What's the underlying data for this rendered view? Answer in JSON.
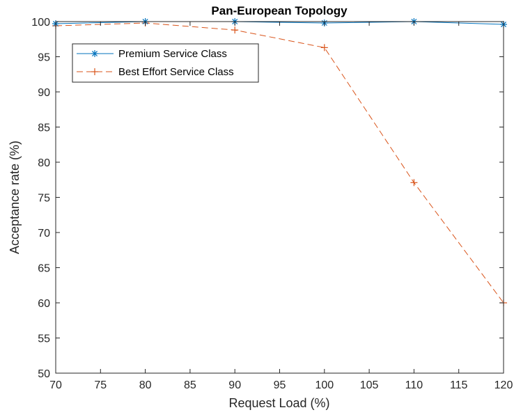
{
  "chart_data": {
    "type": "line",
    "title": "Pan-European Topology",
    "xlabel": "Request Load (%)",
    "ylabel": "Acceptance rate (%)",
    "xlim": [
      70,
      120
    ],
    "ylim": [
      50,
      100
    ],
    "xticks": [
      70,
      75,
      80,
      85,
      90,
      95,
      100,
      105,
      110,
      115,
      120
    ],
    "yticks": [
      50,
      55,
      60,
      65,
      70,
      75,
      80,
      85,
      90,
      95,
      100
    ],
    "grid": false,
    "legend_location": "top-left",
    "x": [
      70,
      80,
      90,
      100,
      110,
      120
    ],
    "series": [
      {
        "name": "Premium Service Class",
        "values": [
          99.7,
          100.0,
          100.0,
          99.8,
          100.0,
          99.6
        ],
        "color": "#0072BD",
        "line_style": "solid",
        "marker": "asterisk"
      },
      {
        "name": "Best Effort Service Class",
        "values": [
          99.4,
          99.8,
          98.8,
          96.3,
          77.1,
          60.0
        ],
        "color": "#D95319",
        "line_style": "dashed",
        "marker": "plus"
      }
    ]
  }
}
